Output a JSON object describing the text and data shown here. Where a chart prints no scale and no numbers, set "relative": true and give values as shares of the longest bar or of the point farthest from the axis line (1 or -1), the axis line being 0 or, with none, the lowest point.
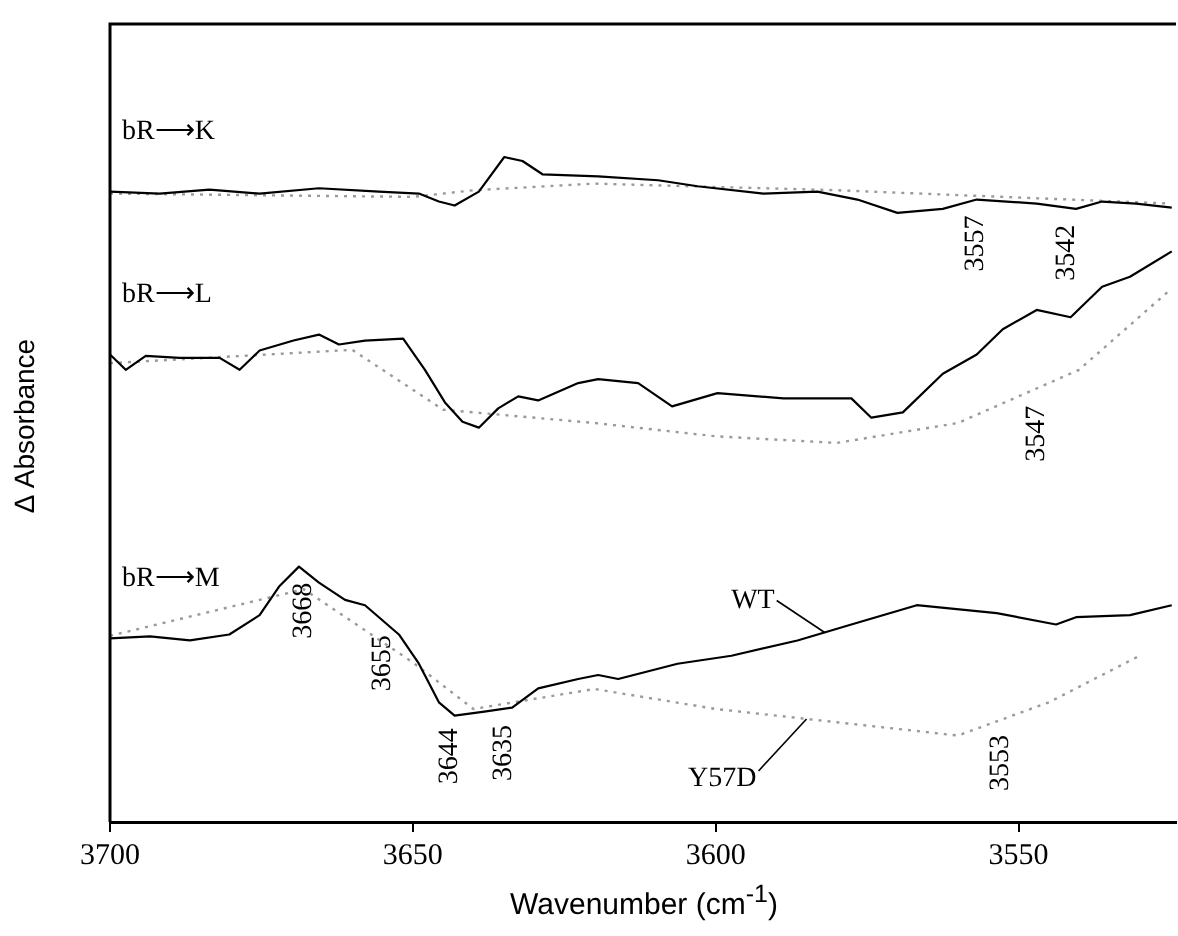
{
  "chart_data": {
    "type": "line",
    "relative": true,
    "xlabel": "Wavenumber (cm$^{-1}$)",
    "ylabel": "Δ Absorbance",
    "xlim": [
      3700,
      3524
    ],
    "xticks": [
      3700,
      3650,
      3600,
      3550
    ],
    "grid": false,
    "legend": false,
    "marker": "none",
    "series": [
      {
        "name": "bR⟶K",
        "color": "#000000",
        "line_style": "solid",
        "x": [
          3700,
          3691.8,
          3683.6,
          3675.3,
          3665.5,
          3655.6,
          3649,
          3645.7,
          3643.1,
          3639.1,
          3634.9,
          3631.9,
          3628.6,
          3619.4,
          3609.5,
          3603,
          3592.1,
          3583.2,
          3576.6,
          3570,
          3562.5,
          3556.9,
          3547,
          3540.5,
          3536.2,
          3530.6,
          3524.7
        ],
        "values": [
          0.948,
          0.945,
          0.951,
          0.945,
          0.953,
          0.948,
          0.945,
          0.933,
          0.927,
          0.948,
          1,
          0.994,
          0.974,
          0.971,
          0.965,
          0.956,
          0.945,
          0.948,
          0.936,
          0.916,
          0.922,
          0.936,
          0.93,
          0.922,
          0.933,
          0.93,
          0.924
        ]
      },
      {
        "color": "#9a9a9a",
        "line_style": "dotted",
        "x": [
          3700,
          3650,
          3640,
          3620,
          3580,
          3525
        ],
        "values": [
          0.945,
          0.94,
          0.95,
          0.96,
          0.95,
          0.93
        ]
      },
      {
        "name": "bR⟶L",
        "color": "#000000",
        "line_style": "solid",
        "x": [
          3700,
          3697.4,
          3694.1,
          3688.5,
          3681.9,
          3678.6,
          3675.3,
          3669.7,
          3665.5,
          3662.2,
          3657.9,
          3651.6,
          3648,
          3644.7,
          3641.8,
          3639.1,
          3635.9,
          3632.6,
          3629.3,
          3622.7,
          3619.4,
          3612.8,
          3607.2,
          3599.7,
          3588.8,
          3577.6,
          3574.3,
          3569.1,
          3562.5,
          3556.9,
          3552.6,
          3547,
          3541.4,
          3536.2,
          3531.6,
          3524.7
        ],
        "values": [
          0.703,
          0.68,
          0.701,
          0.698,
          0.698,
          0.68,
          0.709,
          0.724,
          0.733,
          0.718,
          0.724,
          0.727,
          0.68,
          0.631,
          0.602,
          0.593,
          0.622,
          0.64,
          0.634,
          0.66,
          0.666,
          0.66,
          0.625,
          0.645,
          0.637,
          0.637,
          0.608,
          0.616,
          0.674,
          0.703,
          0.741,
          0.77,
          0.759,
          0.805,
          0.82,
          0.858
        ]
      },
      {
        "color": "#9a9a9a",
        "line_style": "dotted",
        "x": [
          3700,
          3660,
          3645,
          3620,
          3600,
          3580,
          3560,
          3540,
          3525
        ],
        "values": [
          0.69,
          0.71,
          0.62,
          0.6,
          0.58,
          0.57,
          0.6,
          0.68,
          0.8
        ]
      },
      {
        "name": "bR⟶M",
        "color": "#000000",
        "line_style": "solid",
        "x": [
          3700,
          3693.4,
          3686.8,
          3680.3,
          3675.3,
          3672,
          3668.8,
          3665.5,
          3661.2,
          3657.9,
          3652.3,
          3649,
          3645.7,
          3643.1,
          3638.2,
          3633.6,
          3629.3,
          3622.7,
          3619.4,
          3616.1,
          3606.3,
          3597.4,
          3586.5,
          3577.6,
          3566.8,
          3553.6,
          3543.8,
          3540.5,
          3531.6,
          3524.7
        ],
        "values": [
          0.276,
          0.279,
          0.273,
          0.282,
          0.311,
          0.355,
          0.384,
          0.36,
          0.334,
          0.326,
          0.282,
          0.238,
          0.18,
          0.16,
          0.166,
          0.172,
          0.201,
          0.215,
          0.221,
          0.215,
          0.238,
          0.25,
          0.273,
          0.297,
          0.326,
          0.314,
          0.297,
          0.308,
          0.311,
          0.326
        ]
      },
      {
        "color": "#9a9a9a",
        "line_style": "dotted",
        "x": [
          3700,
          3668,
          3650,
          3640,
          3620,
          3600,
          3580,
          3560,
          3545,
          3530
        ],
        "values": [
          0.28,
          0.35,
          0.24,
          0.17,
          0.2,
          0.17,
          0.15,
          0.13,
          0.18,
          0.25
        ]
      }
    ],
    "annotations": [
      {
        "text": "3557",
        "x": 3557,
        "y": 0.936
      },
      {
        "text": "3542",
        "x": 3542,
        "y": 0.922
      },
      {
        "text": "3547",
        "x": 3547,
        "y": 0.65
      },
      {
        "text": "3553",
        "x": 3553,
        "y": 0.155
      },
      {
        "text": "3668",
        "x": 3668,
        "y": 0.384
      },
      {
        "text": "3655",
        "x": 3655,
        "y": 0.305
      },
      {
        "text": "3644",
        "x": 3644,
        "y": 0.165
      },
      {
        "text": "3635",
        "x": 3635,
        "y": 0.17
      },
      {
        "text": "WT",
        "x": 3582,
        "y": 0.285
      },
      {
        "text": "Y57D",
        "x": 3585,
        "y": 0.155
      }
    ]
  }
}
